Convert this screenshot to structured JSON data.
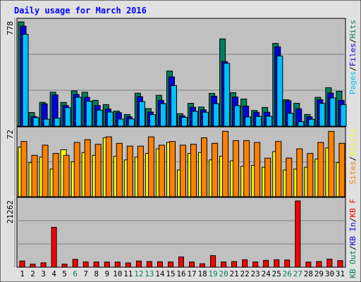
{
  "chart_data": {
    "type": "bar",
    "title": "Daily usage for March 2016",
    "categories": [
      "1",
      "2",
      "3",
      "4",
      "5",
      "6",
      "7",
      "8",
      "9",
      "10",
      "11",
      "12",
      "13",
      "14",
      "15",
      "16",
      "17",
      "18",
      "19",
      "20",
      "21",
      "22",
      "23",
      "24",
      "25",
      "26",
      "27",
      "28",
      "29",
      "30",
      "31"
    ],
    "weekend_days": [
      "6",
      "12",
      "13",
      "19",
      "20",
      "26",
      "27"
    ],
    "colors": {
      "hits": "#00805c",
      "files": "#0000e6",
      "pages": "#00c0ff",
      "visits": "#ffff00",
      "sites": "#ff8000",
      "kbytes": "#ff0000",
      "weekday_label": "#000000",
      "weekend_label": "#00805c",
      "title": "#0000ff",
      "panel_bg": "#c0c0c0",
      "frame_bg": "#e0e0e0"
    },
    "panels": [
      {
        "id": "hits-files-pages",
        "ymax_label": "778",
        "ylim": [
          0,
          778
        ],
        "legend": [
          {
            "label": "Hits",
            "color": "#00805c"
          },
          {
            "label": "/",
            "color": "#000000"
          },
          {
            "label": "Files",
            "color": "#0000e6"
          },
          {
            "label": "/",
            "color": "#000000"
          },
          {
            "label": "Pages",
            "color": "#00c0ff"
          }
        ],
        "series": [
          {
            "key": "hits",
            "values": [
              778,
              102,
              178,
              253,
              177,
              263,
              253,
              193,
              161,
              113,
              87,
              246,
              131,
              230,
              411,
              93,
              171,
              143,
              245,
              651,
              250,
              203,
              117,
              140,
              617,
              197,
              171,
              87,
              215,
              287,
              260
            ]
          },
          {
            "key": "files",
            "values": [
              746,
              72,
              167,
              234,
              154,
              237,
              215,
              154,
              129,
              101,
              70,
              220,
              105,
              193,
              368,
              77,
              141,
              122,
              224,
              482,
              217,
              150,
              104,
              104,
              592,
              190,
              130,
              70,
              197,
              247,
              193
            ]
          },
          {
            "key": "pages",
            "values": [
              685,
              64,
              52,
              60,
              138,
              216,
              186,
              120,
              105,
              53,
              54,
              183,
              86,
              168,
              303,
              66,
              111,
              104,
              168,
              469,
              153,
              69,
              73,
              74,
              523,
              96,
              33,
              51,
              170,
              211,
              161
            ]
          }
        ]
      },
      {
        "id": "visits-sites",
        "ymax_label": "72",
        "ylim": [
          0,
          72
        ],
        "legend": [
          {
            "label": "Visits",
            "color": "#ffff00"
          },
          {
            "label": "/",
            "color": "#000000"
          },
          {
            "label": "Sites",
            "color": "#ff8000"
          }
        ],
        "series": [
          {
            "key": "visits",
            "values": [
              54,
              37,
              43,
              30,
              51,
              38,
              48,
              45,
              64,
              44,
              40,
              43,
              47,
              52,
              59,
              29,
              47,
              48,
              40,
              44,
              39,
              33,
              34,
              32,
              49,
              29,
              30,
              32,
              41,
              53,
              37
            ]
          },
          {
            "key": "sites",
            "values": [
              60,
              45,
              56,
              47,
              45,
              59,
              62,
              57,
              65,
              58,
              55,
              55,
              65,
              56,
              60,
              56,
              57,
              64,
              58,
              71,
              61,
              61,
              59,
              42,
              60,
              42,
              52,
              47,
              59,
              71,
              58
            ]
          }
        ]
      },
      {
        "id": "kbytes",
        "ymax_label": "21262",
        "ylim": [
          0,
          21262
        ],
        "legend": [
          {
            "label": "KB F",
            "color": "#ff0000"
          },
          {
            "label": "/",
            "color": "#000000"
          },
          {
            "label": "KB In",
            "color": "#0000e6"
          },
          {
            "label": "/",
            "color": "#000000"
          },
          {
            "label": "KB Out",
            "color": "#00805c"
          }
        ],
        "series": [
          {
            "key": "kbytes",
            "values": [
              1990,
              1000,
              1400,
              12800,
              1000,
              2500,
              1700,
              1700,
              1650,
              1650,
              1350,
              2000,
              1800,
              1750,
              1700,
              3300,
              1700,
              1100,
              3700,
              1700,
              1800,
              2400,
              1700,
              2200,
              2400,
              2300,
              21262,
              1650,
              1800,
              2600,
              2100
            ]
          }
        ]
      }
    ]
  }
}
